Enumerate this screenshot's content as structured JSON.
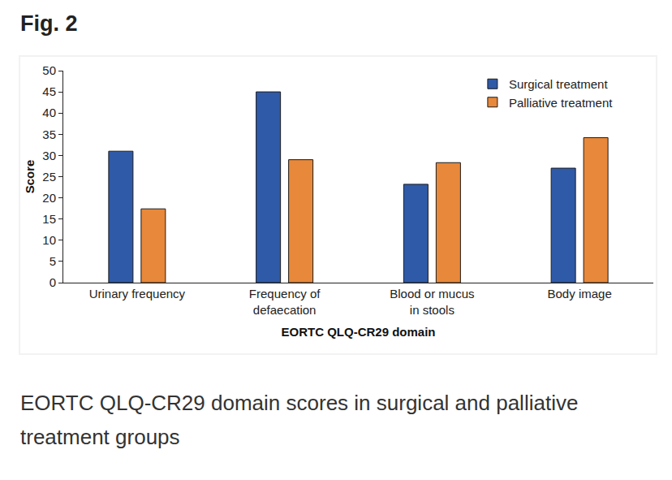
{
  "header": {
    "title": "Fig. 2"
  },
  "chart_data": {
    "type": "bar",
    "categories": [
      "Urinary frequency",
      "Frequency of defaecation",
      "Blood or mucus in stools",
      "Body image"
    ],
    "series": [
      {
        "name": "Surgical treatment",
        "color": "#2f5aa8",
        "values": [
          31,
          45,
          23.2,
          27
        ]
      },
      {
        "name": "Palliative treatment",
        "color": "#e8883a",
        "values": [
          17.4,
          29,
          28.3,
          34.2
        ]
      }
    ],
    "x_label": "EORTC QLQ-CR29 domain",
    "y_label": "Score",
    "ylim": [
      0,
      50
    ],
    "yticks": [
      0,
      5,
      10,
      15,
      20,
      25,
      30,
      35,
      40,
      45,
      50
    ],
    "grid": false,
    "legend": "upper right"
  },
  "caption": "EORTC QLQ-CR29 domain scores in surgical and palliative treatment groups"
}
